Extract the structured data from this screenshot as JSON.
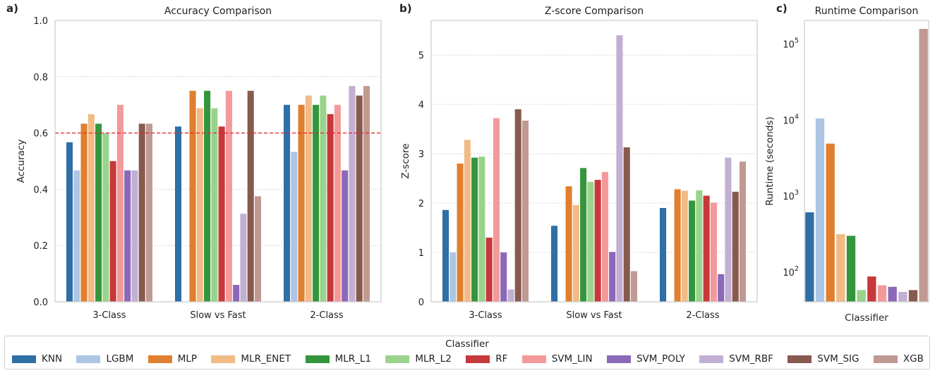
{
  "classifiers": [
    "KNN",
    "LGBM",
    "MLP",
    "MLR_ENET",
    "MLR_L1",
    "MLR_L2",
    "RF",
    "SVM_LIN",
    "SVM_POLY",
    "SVM_RBF",
    "SVM_SIG",
    "XGB"
  ],
  "colors": [
    "#2e6fa6",
    "#adc6e5",
    "#e07f2f",
    "#f2bb85",
    "#34963c",
    "#9ad38c",
    "#c7383b",
    "#f4999a",
    "#8c68b8",
    "#c2afd3",
    "#875a4e",
    "#c09a92"
  ],
  "threshold_color": "#e8232b",
  "legend": {
    "title": "Classifier"
  },
  "chart_data": [
    {
      "id": "accuracy",
      "panel_label": "a)",
      "type": "bar",
      "title": "Accuracy Comparison",
      "xlabel": "",
      "ylabel": "Accuracy",
      "ylim": [
        0,
        1.0
      ],
      "yticks": [
        "0.0",
        "0.2",
        "0.4",
        "0.6",
        "0.8",
        "1.0"
      ],
      "grid": true,
      "reference_line": 0.6,
      "categories": [
        "3-Class",
        "Slow vs Fast",
        "2-Class"
      ],
      "series": [
        {
          "name": "KNN",
          "values": [
            0.567,
            0.623,
            0.7
          ]
        },
        {
          "name": "LGBM",
          "values": [
            0.467,
            0.0,
            0.533
          ]
        },
        {
          "name": "MLP",
          "values": [
            0.633,
            0.75,
            0.7
          ]
        },
        {
          "name": "MLR_ENET",
          "values": [
            0.667,
            0.688,
            0.733
          ]
        },
        {
          "name": "MLR_L1",
          "values": [
            0.633,
            0.75,
            0.7
          ]
        },
        {
          "name": "MLR_L2",
          "values": [
            0.6,
            0.688,
            0.733
          ]
        },
        {
          "name": "RF",
          "values": [
            0.5,
            0.623,
            0.667
          ]
        },
        {
          "name": "SVM_LIN",
          "values": [
            0.7,
            0.75,
            0.7
          ]
        },
        {
          "name": "SVM_POLY",
          "values": [
            0.467,
            0.06,
            0.467
          ]
        },
        {
          "name": "SVM_RBF",
          "values": [
            0.467,
            0.313,
            0.767
          ]
        },
        {
          "name": "SVM_SIG",
          "values": [
            0.633,
            0.75,
            0.733
          ]
        },
        {
          "name": "XGB",
          "values": [
            0.633,
            0.375,
            0.767
          ]
        }
      ]
    },
    {
      "id": "zscore",
      "panel_label": "b)",
      "type": "bar",
      "title": "Z-score Comparison",
      "xlabel": "",
      "ylabel": "Z-score",
      "ylim": [
        0,
        5.7
      ],
      "yticks": [
        "0",
        "1",
        "2",
        "3",
        "4",
        "5"
      ],
      "grid": true,
      "categories": [
        "3-Class",
        "Slow vs Fast",
        "2-Class"
      ],
      "series": [
        {
          "name": "KNN",
          "values": [
            1.86,
            1.54,
            1.9
          ]
        },
        {
          "name": "LGBM",
          "values": [
            1.0,
            0.0,
            0.0
          ]
        },
        {
          "name": "MLP",
          "values": [
            2.8,
            2.34,
            2.28
          ]
        },
        {
          "name": "MLR_ENET",
          "values": [
            3.28,
            1.96,
            2.25
          ]
        },
        {
          "name": "MLR_L1",
          "values": [
            2.92,
            2.71,
            2.05
          ]
        },
        {
          "name": "MLR_L2",
          "values": [
            2.94,
            2.43,
            2.26
          ]
        },
        {
          "name": "RF",
          "values": [
            1.3,
            2.47,
            2.15
          ]
        },
        {
          "name": "SVM_LIN",
          "values": [
            3.72,
            2.63,
            2.01
          ]
        },
        {
          "name": "SVM_POLY",
          "values": [
            1.0,
            1.01,
            0.56
          ]
        },
        {
          "name": "SVM_RBF",
          "values": [
            0.25,
            5.4,
            2.92
          ]
        },
        {
          "name": "SVM_SIG",
          "values": [
            3.9,
            3.13,
            2.23
          ]
        },
        {
          "name": "XGB",
          "values": [
            3.67,
            0.62,
            2.84
          ]
        }
      ]
    },
    {
      "id": "runtime",
      "panel_label": "c)",
      "type": "bar",
      "scale": "log",
      "title": "Runtime Comparison",
      "xlabel": "Classifier",
      "ylabel": "Runtime (seconds)",
      "ylim": [
        40,
        200000
      ],
      "yticks": [
        {
          "value": 100,
          "base": "10",
          "exp": "2"
        },
        {
          "value": 1000,
          "base": "10",
          "exp": "3"
        },
        {
          "value": 10000,
          "base": "10",
          "exp": "4"
        },
        {
          "value": 100000,
          "base": "10",
          "exp": "5"
        }
      ],
      "grid": false,
      "series": [
        {
          "name": "KNN",
          "value": 600
        },
        {
          "name": "LGBM",
          "value": 10300
        },
        {
          "name": "MLP",
          "value": 4800
        },
        {
          "name": "MLR_ENET",
          "value": 310
        },
        {
          "name": "MLR_L1",
          "value": 295
        },
        {
          "name": "MLR_L2",
          "value": 57
        },
        {
          "name": "RF",
          "value": 86
        },
        {
          "name": "SVM_LIN",
          "value": 66
        },
        {
          "name": "SVM_POLY",
          "value": 63
        },
        {
          "name": "SVM_RBF",
          "value": 54
        },
        {
          "name": "SVM_SIG",
          "value": 57
        },
        {
          "name": "XGB",
          "value": 155000
        }
      ]
    }
  ]
}
